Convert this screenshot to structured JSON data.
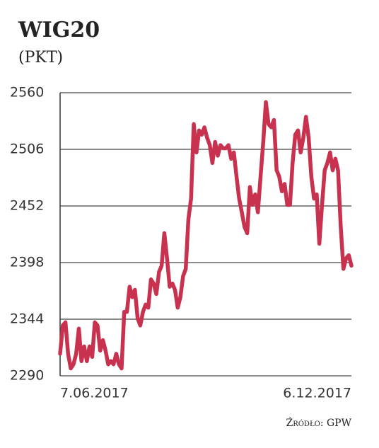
{
  "chart_data": {
    "type": "line",
    "title": "WIG20",
    "subtitle": "(PKT)",
    "source": "Źródło: GPW",
    "categories": [
      "7.06.2017",
      null,
      null,
      null,
      null,
      null,
      null,
      null,
      null,
      null,
      null,
      null,
      null,
      null,
      null,
      null,
      null,
      null,
      null,
      null,
      null,
      null,
      null,
      null,
      null,
      null,
      null,
      null,
      null,
      null,
      null,
      null,
      null,
      null,
      null,
      null,
      null,
      null,
      null,
      null,
      null,
      null,
      null,
      null,
      null,
      null,
      null,
      null,
      null,
      null,
      null,
      null,
      null,
      null,
      null,
      null,
      null,
      null,
      null,
      null,
      null,
      null,
      null,
      null,
      null,
      null,
      null,
      null,
      null,
      null,
      null,
      null,
      null,
      null,
      null,
      null,
      null,
      null,
      null,
      null,
      null,
      null,
      null,
      null,
      null,
      null,
      null,
      null,
      null,
      null,
      null,
      null,
      null,
      null,
      null,
      null,
      null,
      null,
      null,
      null,
      null,
      null,
      null,
      null,
      null,
      null,
      null,
      null,
      null,
      "6.12.2017"
    ],
    "values": [
      2311,
      2338,
      2341,
      2311,
      2297,
      2301,
      2311,
      2335,
      2304,
      2318,
      2304,
      2318,
      2308,
      2341,
      2338,
      2314,
      2324,
      2314,
      2301,
      2304,
      2301,
      2311,
      2301,
      2297,
      2351,
      2351,
      2375,
      2365,
      2372,
      2345,
      2338,
      2351,
      2358,
      2355,
      2382,
      2378,
      2368,
      2389,
      2395,
      2426,
      2402,
      2375,
      2378,
      2372,
      2355,
      2365,
      2385,
      2392,
      2439,
      2459,
      2530,
      2503,
      2524,
      2520,
      2527,
      2517,
      2510,
      2493,
      2513,
      2500,
      2510,
      2507,
      2507,
      2510,
      2497,
      2503,
      2480,
      2459,
      2446,
      2432,
      2426,
      2470,
      2453,
      2463,
      2446,
      2480,
      2513,
      2551,
      2530,
      2527,
      2534,
      2486,
      2480,
      2466,
      2473,
      2453,
      2453,
      2493,
      2520,
      2524,
      2503,
      2517,
      2537,
      2517,
      2480,
      2459,
      2463,
      2416,
      2453,
      2486,
      2493,
      2503,
      2486,
      2497,
      2486,
      2432,
      2392,
      2402,
      2405,
      2395
    ],
    "color": "#c8324f",
    "ylim": [
      2290,
      2560
    ],
    "yticks": [
      2290,
      2344,
      2398,
      2452,
      2506,
      2560
    ],
    "grid": true
  }
}
